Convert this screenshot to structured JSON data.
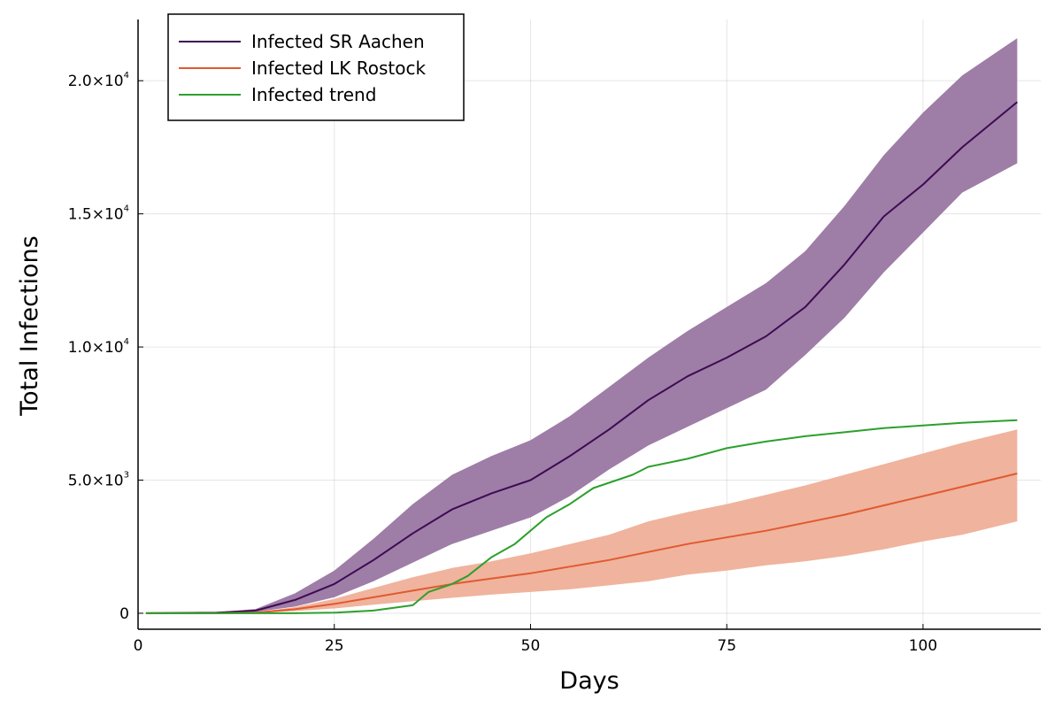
{
  "chart_data": {
    "type": "line",
    "title": "",
    "xlabel": "Days",
    "ylabel": "Total Infections",
    "xlim": [
      0,
      115
    ],
    "ylim": [
      -600,
      22300
    ],
    "grid": true,
    "legend_position": "top-left",
    "x_ticks": [
      0,
      25,
      50,
      75,
      100
    ],
    "x_tick_labels": [
      "0",
      "25",
      "50",
      "75",
      "100"
    ],
    "y_ticks": [
      0,
      5000,
      10000,
      15000,
      20000
    ],
    "y_tick_labels": [
      {
        "mantissa": "0",
        "exponent": ""
      },
      {
        "mantissa": "5.0×10",
        "exponent": "3"
      },
      {
        "mantissa": "1.0×10",
        "exponent": "4"
      },
      {
        "mantissa": "1.5×10",
        "exponent": "4"
      },
      {
        "mantissa": "2.0×10",
        "exponent": "4"
      }
    ],
    "series": [
      {
        "name": "Infected SR Aachen",
        "color": "#3d0b53",
        "band_color": "#9e7da7",
        "x": [
          1,
          10,
          15,
          20,
          25,
          30,
          35,
          40,
          45,
          50,
          55,
          60,
          65,
          70,
          75,
          80,
          85,
          90,
          95,
          100,
          105,
          112
        ],
        "values": [
          0,
          20,
          100,
          500,
          1100,
          2000,
          3000,
          3900,
          4500,
          5000,
          5900,
          6900,
          8000,
          8900,
          9600,
          10400,
          11500,
          13100,
          14900,
          16100,
          17500,
          19200
        ],
        "lower": [
          0,
          10,
          50,
          250,
          600,
          1200,
          1900,
          2600,
          3100,
          3600,
          4400,
          5400,
          6300,
          7000,
          7700,
          8400,
          9700,
          11100,
          12800,
          14300,
          15800,
          16900
        ],
        "upper": [
          0,
          30,
          160,
          750,
          1600,
          2800,
          4100,
          5200,
          5900,
          6500,
          7400,
          8500,
          9600,
          10600,
          11500,
          12400,
          13600,
          15300,
          17200,
          18800,
          20200,
          21600
        ]
      },
      {
        "name": "Infected LK Rostock",
        "color": "#e05a30",
        "band_color": "#f0b39d",
        "x": [
          1,
          10,
          15,
          20,
          25,
          30,
          35,
          40,
          45,
          50,
          55,
          60,
          65,
          70,
          75,
          80,
          85,
          90,
          95,
          100,
          105,
          112
        ],
        "values": [
          0,
          0,
          20,
          150,
          350,
          600,
          850,
          1100,
          1300,
          1500,
          1750,
          2000,
          2300,
          2600,
          2850,
          3100,
          3400,
          3700,
          4050,
          4400,
          4750,
          5250
        ],
        "lower": [
          0,
          0,
          10,
          80,
          180,
          320,
          450,
          580,
          700,
          800,
          900,
          1050,
          1200,
          1450,
          1600,
          1800,
          1950,
          2150,
          2400,
          2700,
          2950,
          3450
        ],
        "upper": [
          0,
          0,
          40,
          230,
          540,
          950,
          1350,
          1700,
          1950,
          2250,
          2600,
          2950,
          3450,
          3800,
          4100,
          4450,
          4800,
          5200,
          5600,
          6000,
          6400,
          6900
        ]
      },
      {
        "name": "Infected trend",
        "color": "#2ca02c",
        "x": [
          1,
          20,
          25,
          30,
          35,
          37,
          40,
          42,
          45,
          48,
          52,
          55,
          58,
          60,
          63,
          65,
          70,
          75,
          80,
          85,
          90,
          95,
          100,
          105,
          112
        ],
        "values": [
          0,
          0,
          20,
          100,
          300,
          800,
          1100,
          1400,
          2100,
          2600,
          3600,
          4100,
          4700,
          4900,
          5200,
          5500,
          5800,
          6200,
          6450,
          6650,
          6800,
          6950,
          7050,
          7150,
          7250
        ]
      }
    ]
  }
}
